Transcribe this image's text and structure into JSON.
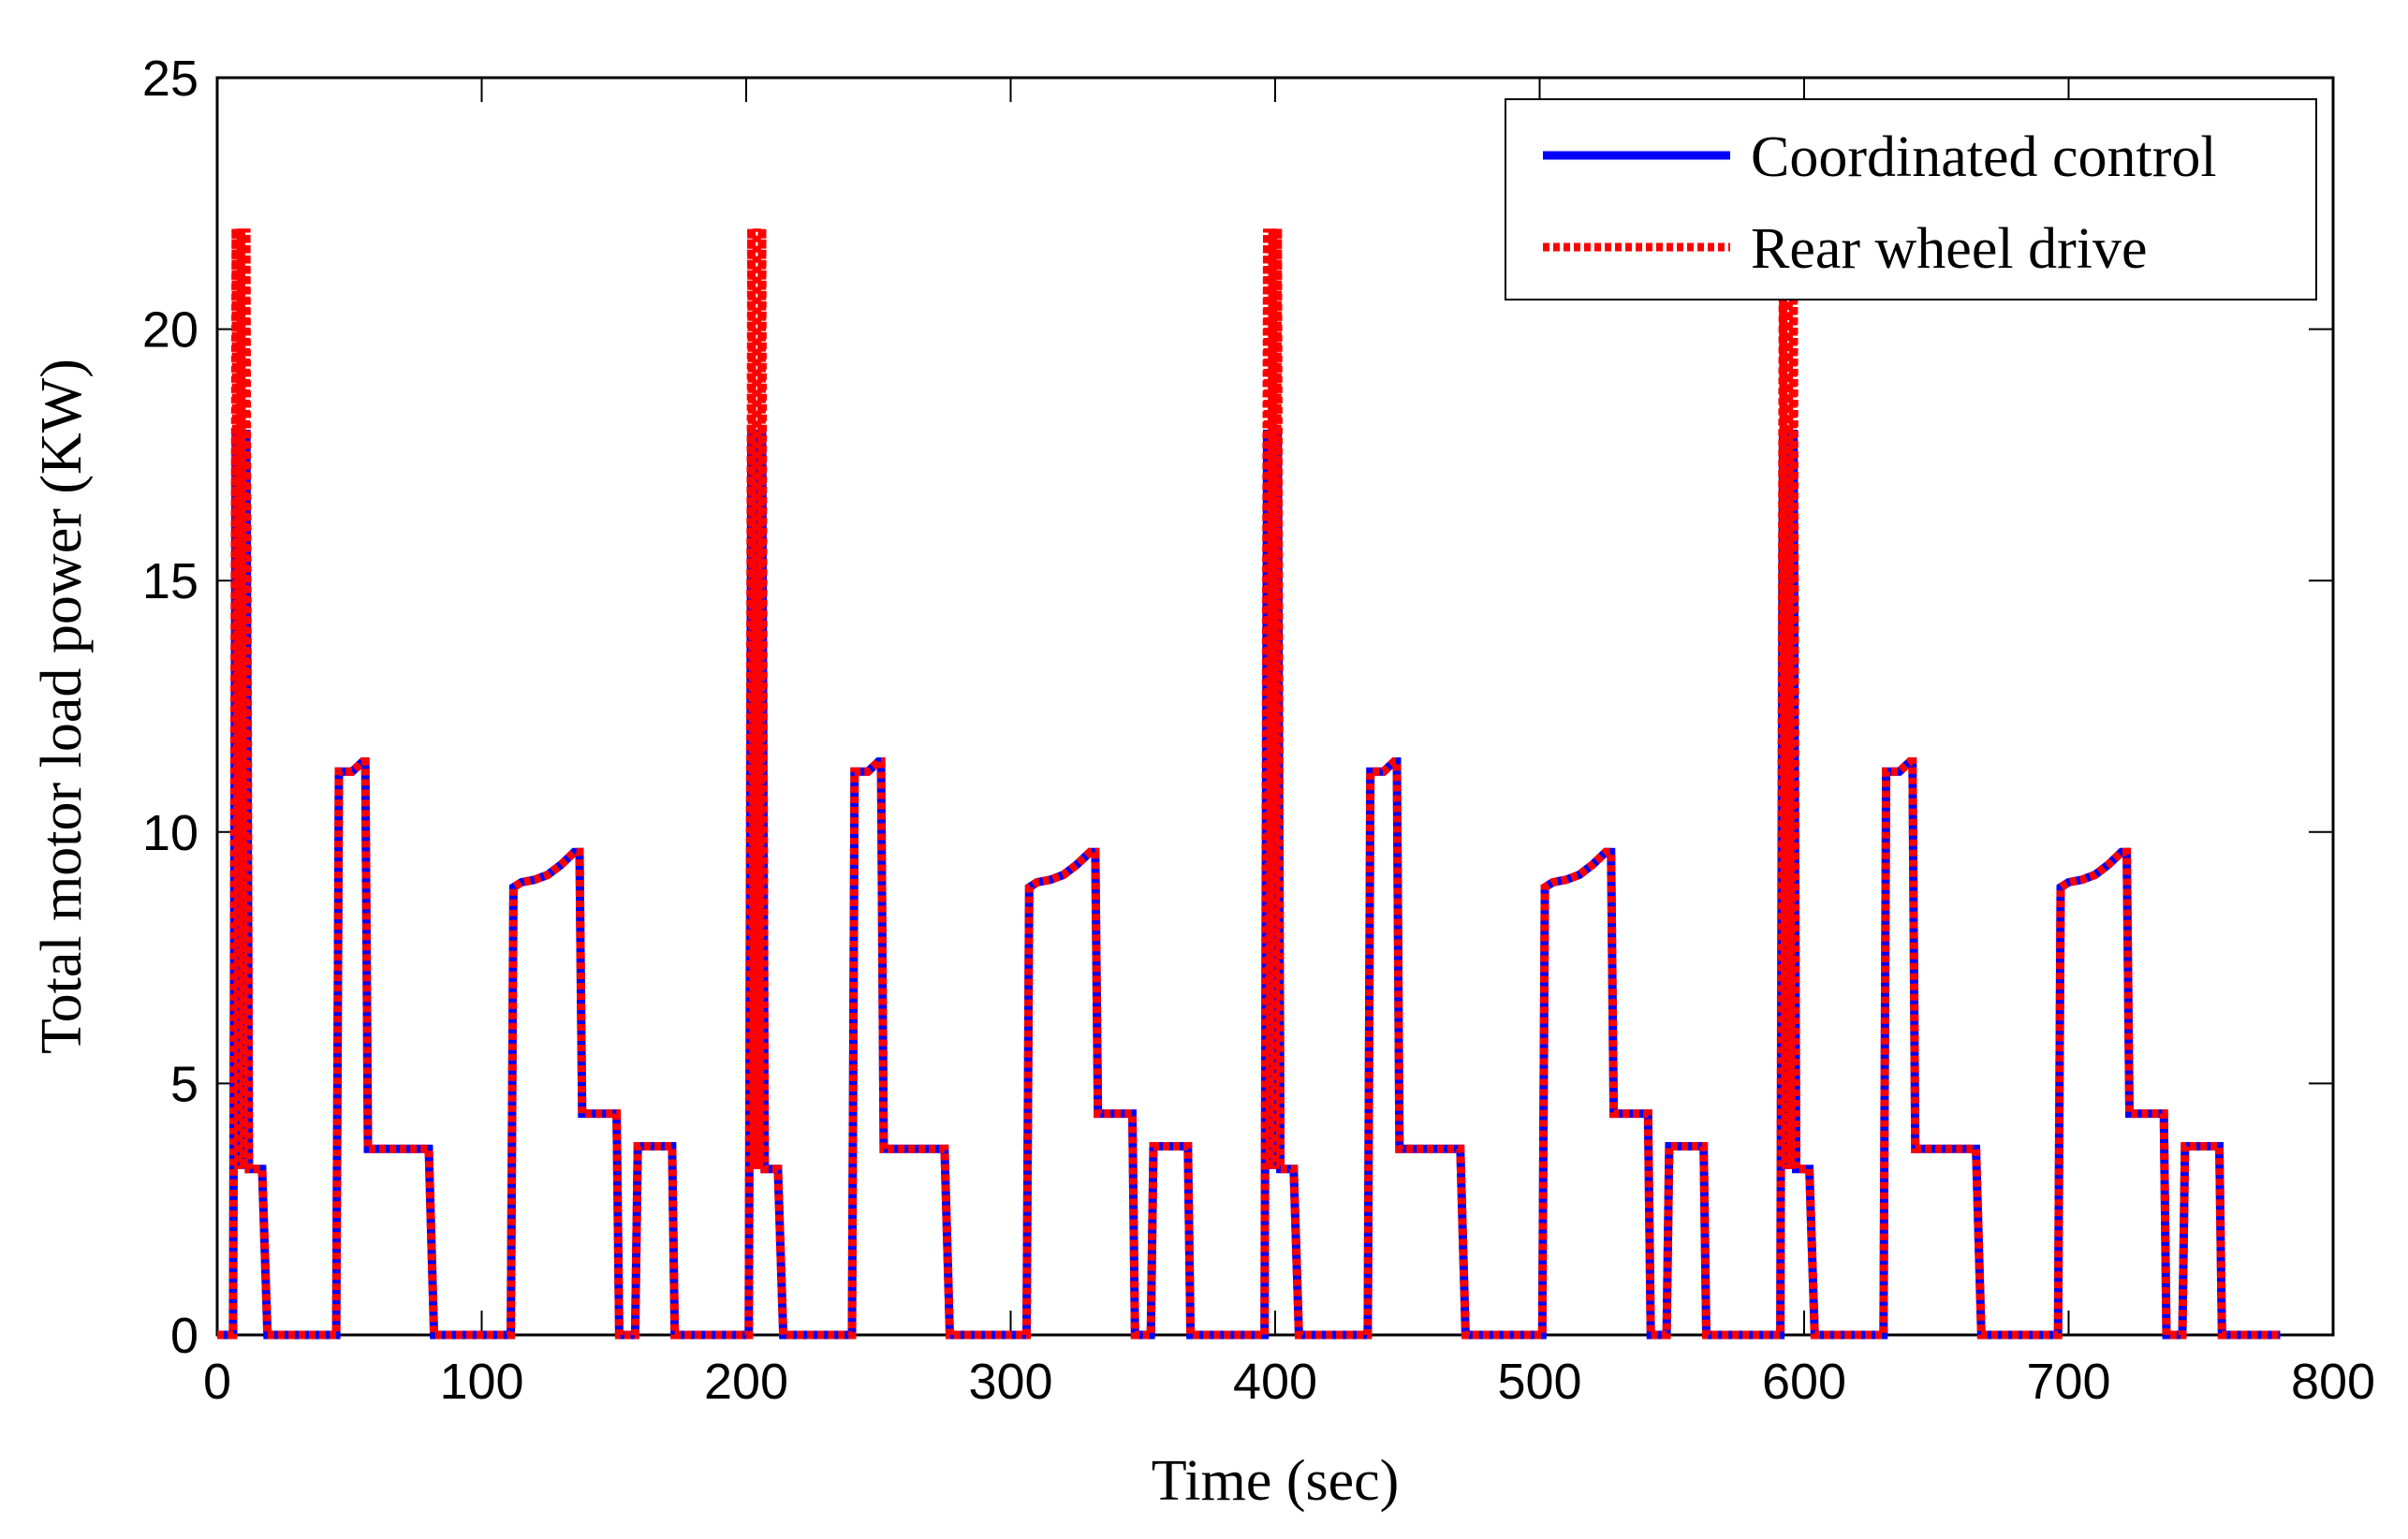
{
  "chart_data": {
    "type": "line",
    "title": "",
    "xlabel": "Time (sec)",
    "ylabel": "Total motor load power (KW)",
    "xlim": [
      0,
      800
    ],
    "ylim": [
      0,
      25
    ],
    "xticks": [
      0,
      100,
      200,
      300,
      400,
      500,
      600,
      700,
      800
    ],
    "yticks": [
      0,
      5,
      10,
      15,
      20,
      25
    ],
    "xtick_labels": [
      "0",
      "100",
      "200",
      "300",
      "400",
      "500",
      "600",
      "700",
      "800"
    ],
    "ytick_labels": [
      "0",
      "5",
      "10",
      "15",
      "20",
      "25"
    ],
    "grid": false,
    "legend_position": "top-right",
    "colors": {
      "coordinated": "#0000ff",
      "rear": "#ff0000"
    },
    "cycle_period": 195,
    "cycles": 4,
    "x_end": 780,
    "series": [
      {
        "name": "Coordinated control",
        "style": "solid",
        "color": "#0000ff",
        "cycle_x": [
          0,
          6,
          7,
          8,
          9,
          10,
          11,
          12,
          17,
          19,
          45,
          46,
          51,
          55,
          56,
          57,
          80,
          82,
          111,
          112,
          115,
          120,
          125,
          130,
          135,
          137,
          138,
          144,
          148,
          151,
          152,
          158,
          159,
          160,
          163,
          164,
          166,
          170,
          172,
          173,
          174,
          195
        ],
        "cycle_y": [
          0,
          0,
          18,
          3.3,
          18,
          3.3,
          18,
          3.3,
          3.3,
          0,
          0,
          11.2,
          11.2,
          11.4,
          11.4,
          3.7,
          3.7,
          0,
          0,
          8.9,
          9.0,
          9.05,
          9.15,
          9.35,
          9.6,
          9.6,
          4.4,
          4.4,
          4.4,
          4.4,
          0,
          0,
          3.75,
          3.75,
          3.75,
          3.75,
          3.75,
          3.75,
          3.75,
          0,
          0,
          0
        ]
      },
      {
        "name": "Rear wheel drive",
        "style": "dotted",
        "color": "#ff0000",
        "cycle_x": [
          0,
          6,
          7,
          8,
          9,
          10,
          11,
          12,
          17,
          19,
          45,
          46,
          51,
          55,
          56,
          57,
          80,
          82,
          111,
          112,
          115,
          120,
          125,
          130,
          135,
          137,
          138,
          144,
          148,
          151,
          152,
          158,
          159,
          160,
          163,
          164,
          166,
          170,
          172,
          173,
          174,
          195
        ],
        "cycle_y": [
          0,
          0,
          22,
          3.3,
          22,
          3.3,
          22,
          3.3,
          3.3,
          0,
          0,
          11.2,
          11.2,
          11.4,
          11.4,
          3.7,
          3.7,
          0,
          0,
          8.9,
          9.0,
          9.05,
          9.15,
          9.35,
          9.6,
          9.6,
          4.4,
          4.4,
          4.4,
          4.4,
          0,
          0,
          3.75,
          3.75,
          3.75,
          3.75,
          3.75,
          3.75,
          3.75,
          0,
          0,
          0
        ]
      }
    ]
  }
}
